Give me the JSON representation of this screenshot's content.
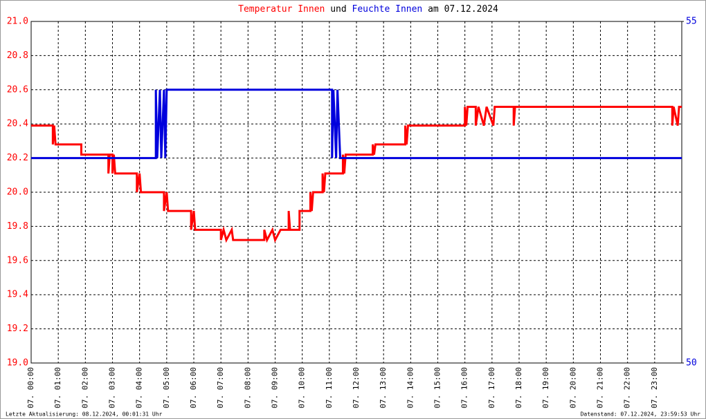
{
  "chart_data": {
    "type": "line",
    "title_mid": "und",
    "title_end": "am 07.12.2024",
    "footer_left": "Letzte Aktualisierung: 08.12.2024, 00:01:31 Uhr",
    "footer_right": "Datenstand: 07.12.2024, 23:59:53 Uhr",
    "xlim": [
      0,
      24
    ],
    "xticks": [
      {
        "value": 0,
        "label": "07. 00:00"
      },
      {
        "value": 1,
        "label": "07. 01:00"
      },
      {
        "value": 2,
        "label": "07. 02:00"
      },
      {
        "value": 3,
        "label": "07. 03:00"
      },
      {
        "value": 4,
        "label": "07. 04:00"
      },
      {
        "value": 5,
        "label": "07. 05:00"
      },
      {
        "value": 6,
        "label": "07. 06:00"
      },
      {
        "value": 7,
        "label": "07. 07:00"
      },
      {
        "value": 8,
        "label": "07. 08:00"
      },
      {
        "value": 9,
        "label": "07. 09:00"
      },
      {
        "value": 10,
        "label": "07. 10:00"
      },
      {
        "value": 11,
        "label": "07. 11:00"
      },
      {
        "value": 12,
        "label": "07. 12:00"
      },
      {
        "value": 13,
        "label": "07. 13:00"
      },
      {
        "value": 14,
        "label": "07. 14:00"
      },
      {
        "value": 15,
        "label": "07. 15:00"
      },
      {
        "value": 16,
        "label": "07. 16:00"
      },
      {
        "value": 17,
        "label": "07. 17:00"
      },
      {
        "value": 18,
        "label": "07. 18:00"
      },
      {
        "value": 19,
        "label": "07. 19:00"
      },
      {
        "value": 20,
        "label": "07. 20:00"
      },
      {
        "value": 21,
        "label": "07. 21:00"
      },
      {
        "value": 22,
        "label": "07. 22:00"
      },
      {
        "value": 23,
        "label": "07. 23:00"
      }
    ],
    "ylim": [
      19,
      21
    ],
    "yticks": [
      {
        "value": 19,
        "label": "19.0"
      },
      19.2,
      19.4,
      19.6,
      19.8,
      {
        "value": 20,
        "label": "20.0"
      },
      20.2,
      20.4,
      20.6,
      20.8,
      {
        "value": 21,
        "label": "21.0"
      }
    ],
    "y2lim": [
      50,
      55
    ],
    "y2ticks": [
      50,
      55
    ],
    "grid": true,
    "series": [
      {
        "name": "Temperatur Innen",
        "color": "#ff0000",
        "x": [
          0,
          0.8,
          0.8,
          0.85,
          0.9,
          1.85,
          1.85,
          2.85,
          2.85,
          2.9,
          3.0,
          3.0,
          3.05,
          3.1,
          3.9,
          3.9,
          4.0,
          4.05,
          4.9,
          4.9,
          5.0,
          5.05,
          5.9,
          5.9,
          6.0,
          6.05,
          7.0,
          7.0,
          7.1,
          7.2,
          7.4,
          7.45,
          8.6,
          8.6,
          8.7,
          8.9,
          9.0,
          9.2,
          9.5,
          9.5,
          9.55,
          9.9,
          9.9,
          10.3,
          10.3,
          10.35,
          10.4,
          10.75,
          10.75,
          10.8,
          10.85,
          11.5,
          11.5,
          11.55,
          11.6,
          12.6,
          12.6,
          12.65,
          12.7,
          13.8,
          13.8,
          13.85,
          13.9,
          16.0,
          16.0,
          16.05,
          16.1,
          16.4,
          16.4,
          16.5,
          16.7,
          16.8,
          17.05,
          17.1,
          17.8,
          17.8,
          17.85,
          23.65,
          23.65,
          23.7,
          23.85,
          23.9,
          24
        ],
        "values": [
          20.39,
          20.39,
          20.28,
          20.39,
          20.28,
          20.28,
          20.22,
          20.22,
          20.11,
          20.22,
          20.22,
          20.11,
          20.22,
          20.11,
          20.11,
          20.0,
          20.11,
          20.0,
          20.0,
          19.89,
          20.0,
          19.89,
          19.89,
          19.78,
          19.89,
          19.78,
          19.78,
          19.72,
          19.78,
          19.72,
          19.78,
          19.72,
          19.72,
          19.78,
          19.72,
          19.78,
          19.72,
          19.78,
          19.78,
          19.89,
          19.78,
          19.78,
          19.89,
          19.89,
          20.0,
          19.89,
          20.0,
          20.0,
          20.11,
          20.0,
          20.11,
          20.11,
          20.22,
          20.11,
          20.22,
          20.22,
          20.28,
          20.22,
          20.28,
          20.28,
          20.39,
          20.28,
          20.39,
          20.39,
          20.5,
          20.39,
          20.5,
          20.5,
          20.39,
          20.5,
          20.39,
          20.5,
          20.39,
          20.5,
          20.5,
          20.39,
          20.5,
          20.5,
          20.39,
          20.5,
          20.39,
          20.5,
          20.5
        ]
      },
      {
        "name": "Feuchte Innen",
        "color": "#0000dd",
        "axis": "y2",
        "x": [
          0,
          4.6,
          4.6,
          4.65,
          4.75,
          4.8,
          4.9,
          4.95,
          5.0,
          11.1,
          11.1,
          11.15,
          11.25,
          11.3,
          11.4,
          24
        ],
        "values": [
          53,
          53,
          54,
          53,
          54,
          53,
          54,
          53,
          54,
          54,
          53,
          54,
          53,
          54,
          53,
          53
        ]
      }
    ]
  }
}
